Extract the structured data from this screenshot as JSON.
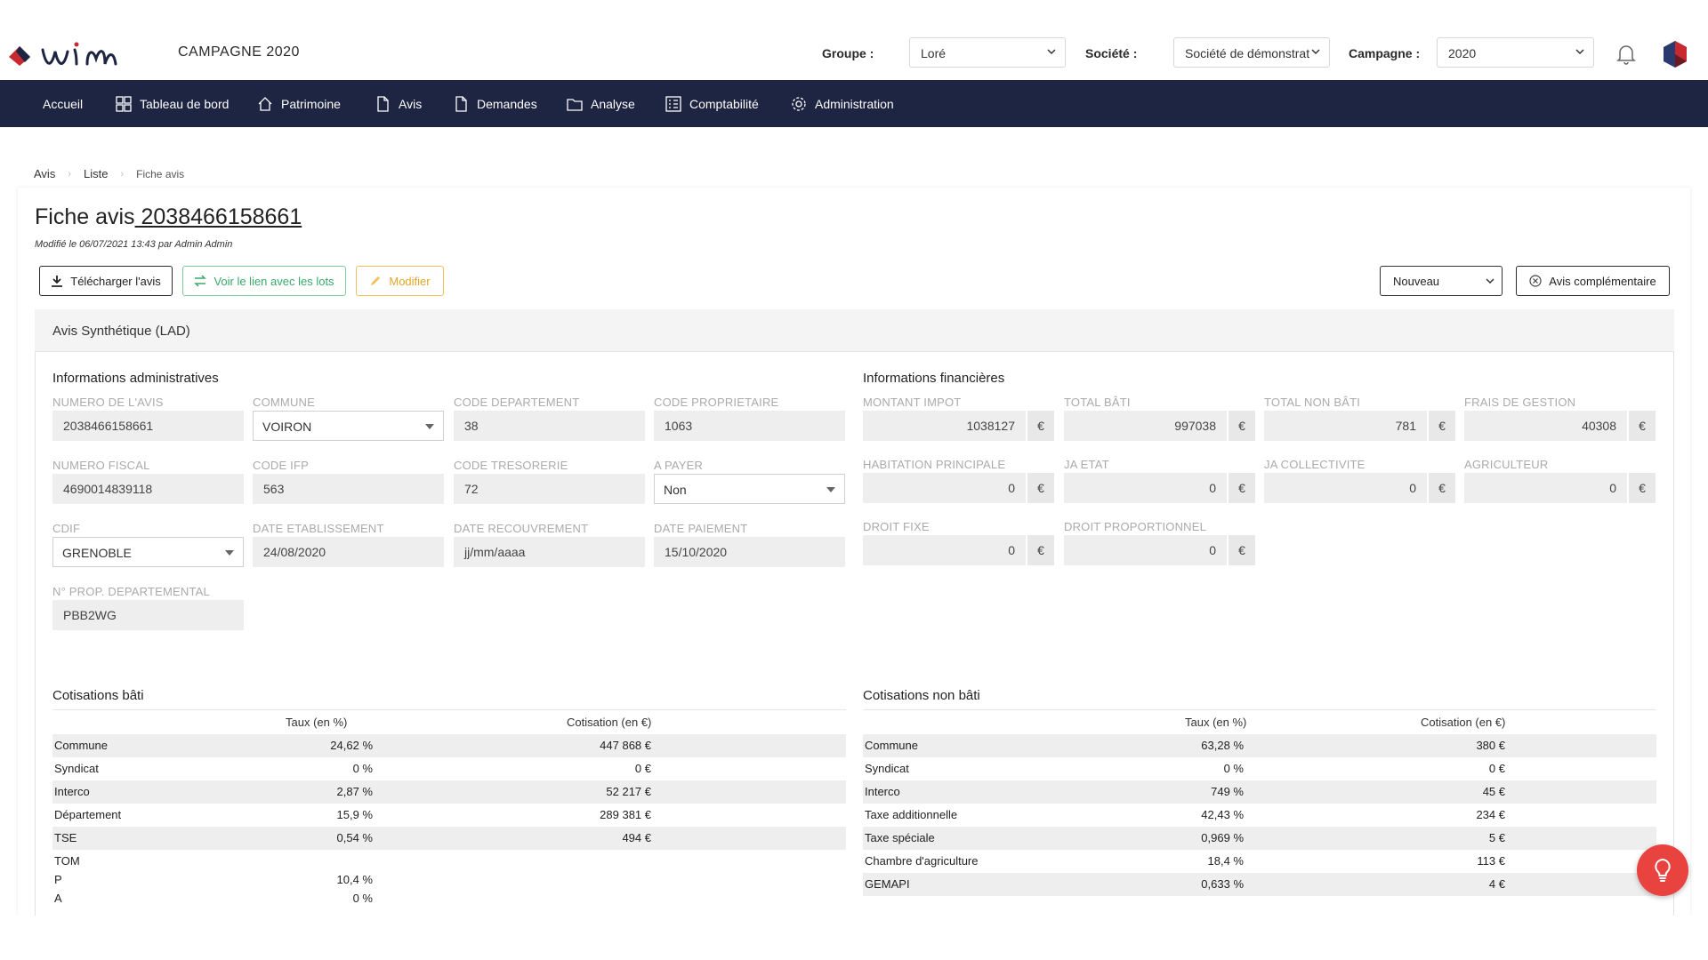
{
  "header": {
    "brand": "wim",
    "campaign_title": "CAMPAGNE 2020",
    "group_label": "Groupe :",
    "group_value": "Loré",
    "company_label": "Société :",
    "company_value": "Société de démonstrat",
    "campaign_label": "Campagne :",
    "campaign_value": "2020"
  },
  "nav": [
    {
      "label": "Accueil",
      "icon": "none"
    },
    {
      "label": "Tableau de bord",
      "icon": "dashboard-icon"
    },
    {
      "label": "Patrimoine",
      "icon": "home-icon"
    },
    {
      "label": "Avis",
      "icon": "document-icon"
    },
    {
      "label": "Demandes",
      "icon": "document-icon"
    },
    {
      "label": "Analyse",
      "icon": "folder-icon"
    },
    {
      "label": "Comptabilité",
      "icon": "ledger-icon"
    },
    {
      "label": "Administration",
      "icon": "gear-icon"
    }
  ],
  "breadcrumb": [
    "Avis",
    "Liste",
    "Fiche avis"
  ],
  "page": {
    "title_prefix": "Fiche avis",
    "title_number": " 2038466158661",
    "modified": "Modifié le 06/07/2021 13:43 par Admin Admin"
  },
  "actions": {
    "download": "Télécharger l'avis",
    "link_lots": "Voir le lien avec les lots",
    "edit": "Modifier",
    "status": "Nouveau",
    "complementary": "Avis complémentaire"
  },
  "section_title": "Avis Synthétique (LAD)",
  "admin": {
    "heading": "Informations administratives",
    "fields": {
      "numero_avis": {
        "label": "NUMERO DE L'AVIS",
        "value": "2038466158661"
      },
      "commune": {
        "label": "COMMUNE",
        "value": "VOIRON"
      },
      "code_departement": {
        "label": "CODE DEPARTEMENT",
        "value": "38"
      },
      "code_proprietaire": {
        "label": "CODE PROPRIETAIRE",
        "value": "1063"
      },
      "numero_fiscal": {
        "label": "NUMERO FISCAL",
        "value": "4690014839118"
      },
      "code_ifp": {
        "label": "CODE IFP",
        "value": "563"
      },
      "code_tresorerie": {
        "label": "CODE TRESORERIE",
        "value": "72"
      },
      "a_payer": {
        "label": "A PAYER",
        "value": "Non"
      },
      "cdif": {
        "label": "CDIF",
        "value": "GRENOBLE"
      },
      "date_etablissement": {
        "label": "DATE ETABLISSEMENT",
        "value": "24/08/2020"
      },
      "date_recouvrement": {
        "label": "DATE RECOUVREMENT",
        "value": "jj/mm/aaaa"
      },
      "date_paiement": {
        "label": "DATE PAIEMENT",
        "value": "15/10/2020"
      },
      "prop_departemental": {
        "label": "N° PROP. DEPARTEMENTAL",
        "value": "PBB2WG"
      }
    }
  },
  "financial": {
    "heading": "Informations financières",
    "currency": "€",
    "fields": {
      "montant_impot": {
        "label": "MONTANT IMPOT",
        "value": "1038127"
      },
      "total_bati": {
        "label": "TOTAL BÂTI",
        "value": "997038"
      },
      "total_non_bati": {
        "label": "TOTAL NON BÂTI",
        "value": "781"
      },
      "frais_gestion": {
        "label": "FRAIS DE GESTION",
        "value": "40308"
      },
      "habitation_principale": {
        "label": "HABITATION PRINCIPALE",
        "value": "0"
      },
      "ja_etat": {
        "label": "JA ETAT",
        "value": "0"
      },
      "ja_collectivite": {
        "label": "JA COLLECTIVITE",
        "value": "0"
      },
      "agriculteur": {
        "label": "AGRICULTEUR",
        "value": "0"
      },
      "droit_fixe": {
        "label": "DROIT FIXE",
        "value": "0"
      },
      "droit_proportionnel": {
        "label": "DROIT PROPORTIONNEL",
        "value": "0"
      }
    }
  },
  "bati": {
    "heading": "Cotisations bâti",
    "col_rate": "Taux (en %)",
    "col_amount": "Cotisation (en €)",
    "rows": [
      {
        "name": "Commune",
        "rate": "24,62 %",
        "amount": "447 868 €"
      },
      {
        "name": "Syndicat",
        "rate": "0 %",
        "amount": "0 €"
      },
      {
        "name": "Interco",
        "rate": "2,87 %",
        "amount": "52 217 €"
      },
      {
        "name": "Département",
        "rate": "15,9 %",
        "amount": "289 381 €"
      },
      {
        "name": "TSE",
        "rate": "0,54 %",
        "amount": "494 €"
      }
    ],
    "tom_label": "TOM",
    "tom_rows": [
      {
        "name": "P",
        "rate": "10,4 %"
      },
      {
        "name": "A",
        "rate": "0 %"
      }
    ]
  },
  "non_bati": {
    "heading": "Cotisations non bâti",
    "col_rate": "Taux (en %)",
    "col_amount": "Cotisation (en €)",
    "rows": [
      {
        "name": "Commune",
        "rate": "63,28 %",
        "amount": "380 €"
      },
      {
        "name": "Syndicat",
        "rate": "0 %",
        "amount": "0 €"
      },
      {
        "name": "Interco",
        "rate": "749 %",
        "amount": "45 €"
      },
      {
        "name": "Taxe additionnelle",
        "rate": "42,43 %",
        "amount": "234 €"
      },
      {
        "name": "Taxe spéciale",
        "rate": "0,969 %",
        "amount": "5 €"
      },
      {
        "name": "Chambre d'agriculture",
        "rate": "18,4 %",
        "amount": "113 €"
      },
      {
        "name": "GEMAPI",
        "rate": "0,633 %",
        "amount": "4 €"
      }
    ]
  },
  "colors": {
    "nav_bg": "#1d2542",
    "accent_red": "#e9433f",
    "green": "#3aa86b",
    "yellow": "#e0a72a"
  }
}
